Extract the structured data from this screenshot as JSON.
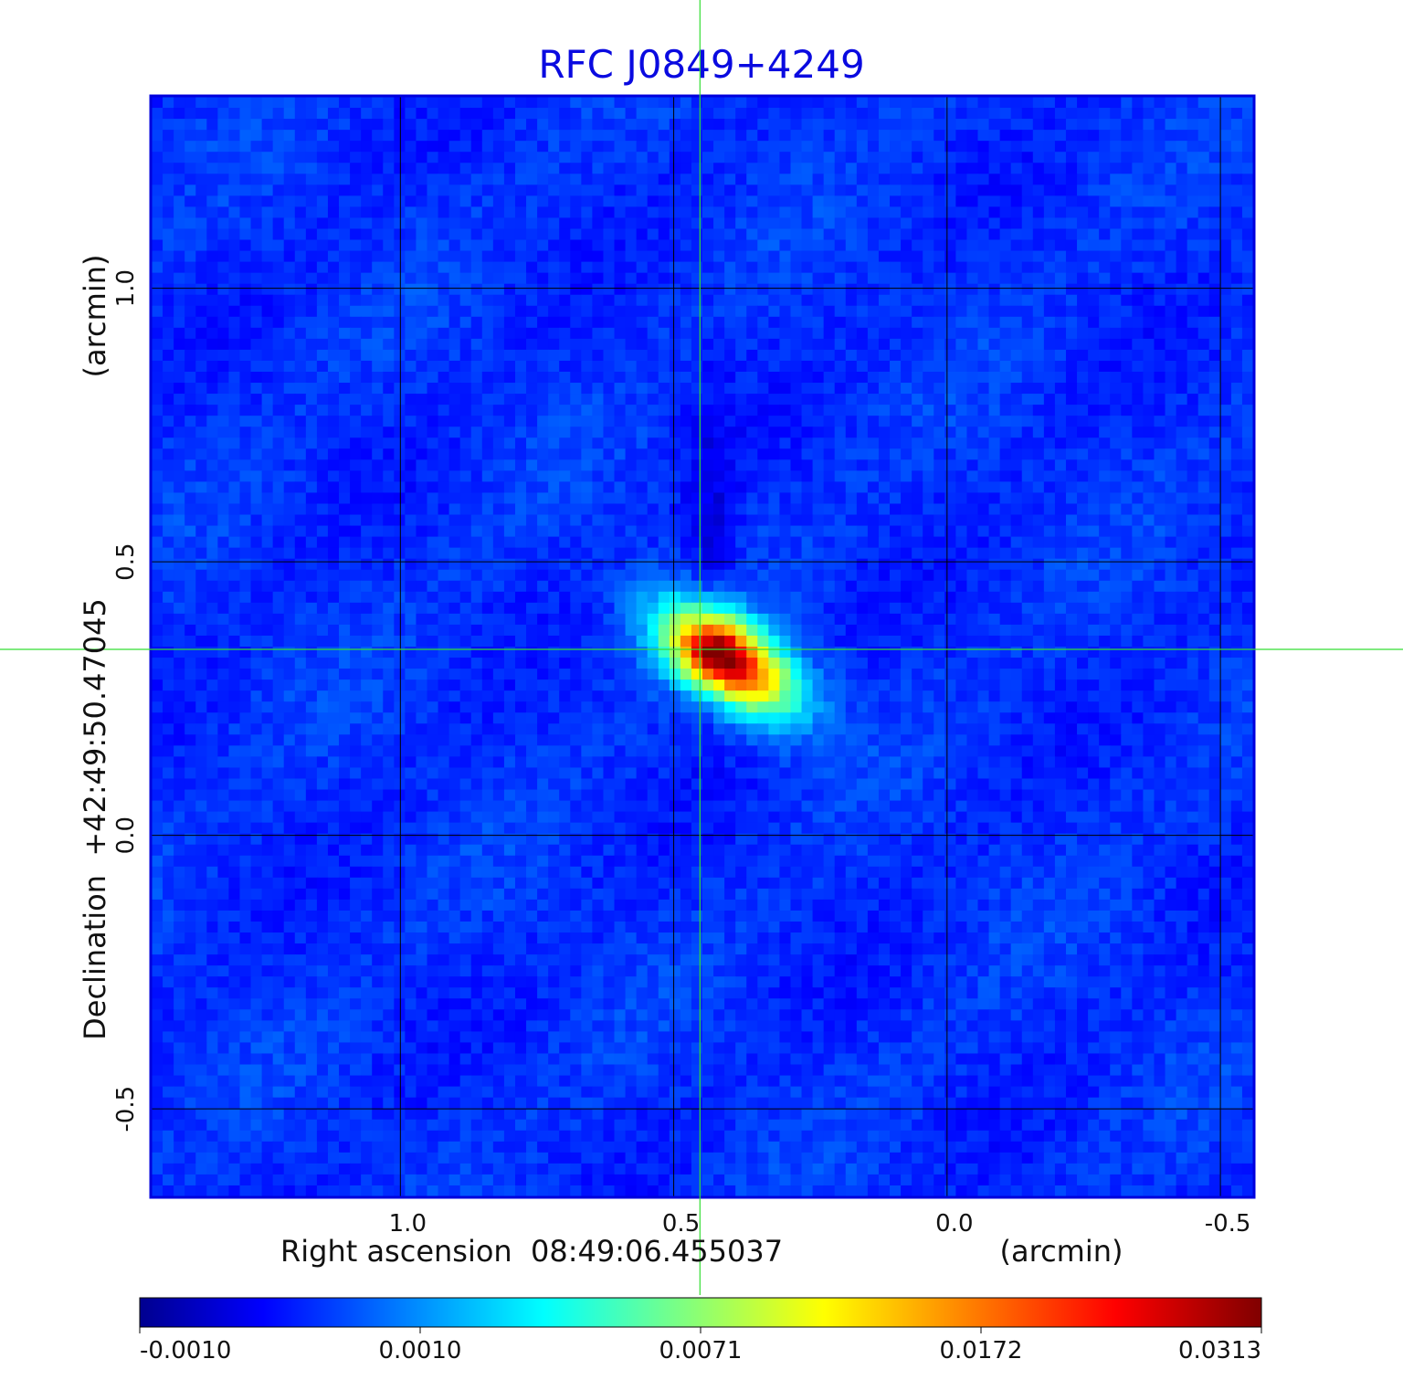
{
  "chart_data": {
    "type": "heatmap",
    "title": "RFC J0849+4249",
    "xlabel": "Right ascension  08:49:06.455037",
    "xunit": "(arcmin)",
    "ylabel": "Declination  +42:49:50.47045",
    "yunit": "(arcmin)",
    "x_ticks": [
      "1.0",
      "0.5",
      "0.0",
      "-0.5"
    ],
    "x_tick_values": [
      1.0,
      0.5,
      0.0,
      -0.5
    ],
    "y_ticks": [
      "1.0",
      "0.5",
      "0.0",
      "-0.5"
    ],
    "y_tick_values": [
      1.0,
      0.5,
      0.0,
      -0.5
    ],
    "xlim": [
      1.455,
      -0.56
    ],
    "ylim": [
      -0.66,
      1.35
    ],
    "grid": true,
    "crosshair": {
      "x": 0.452,
      "y": 0.34
    },
    "source": {
      "x": 0.4,
      "y": 0.32,
      "peak": 0.0313
    },
    "colorbar": {
      "tick_labels": [
        "-0.0010",
        "0.0010",
        "0.0071",
        "0.0172",
        "0.0313"
      ],
      "values": [
        -0.001,
        0.001,
        0.0071,
        0.0172,
        0.0313
      ]
    },
    "colors": {
      "frame": "#0000dd",
      "title": "#0a0ae0",
      "crosshair": "#33dd33",
      "grid": "#000000"
    }
  }
}
